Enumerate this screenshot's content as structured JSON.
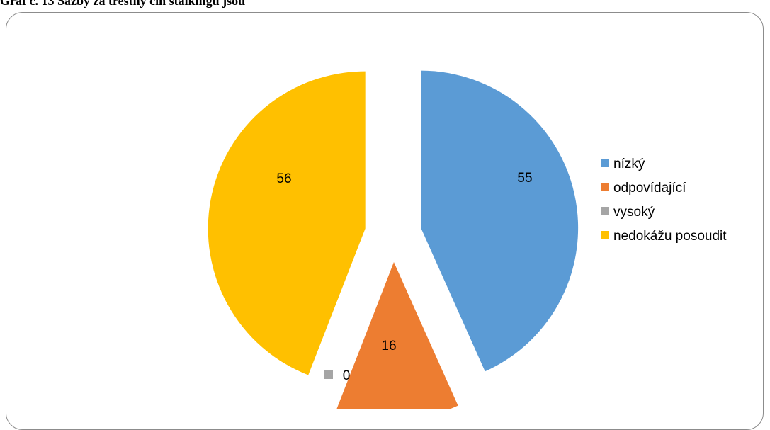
{
  "caption": "Graf č. 13 Sazby za trestný čin stalkingu jsou",
  "chart_data": {
    "type": "pie",
    "title": "",
    "exploded": true,
    "legend_position": "right",
    "series": [
      {
        "categories": [
          "nízký",
          "odpovídající",
          "vysoký",
          "nedokážu posoudit"
        ],
        "values": [
          55,
          16,
          0,
          56
        ],
        "colors": [
          "#5B9BD5",
          "#ED7D31",
          "#A5A5A5",
          "#FFC000"
        ],
        "data_labels": [
          "55",
          "16",
          "0",
          "56"
        ]
      }
    ]
  }
}
